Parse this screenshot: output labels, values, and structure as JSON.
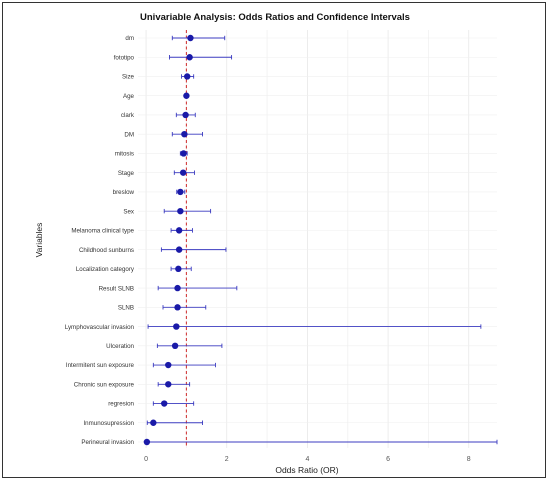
{
  "chart_data": {
    "type": "forest",
    "title": "Univariable Analysis: Odds Ratios and Confidence Intervals",
    "xlabel": "Odds Ratio (OR)",
    "ylabel": "Variables",
    "xlim": [
      -0.2,
      8.7
    ],
    "xticks": [
      0,
      2,
      4,
      6,
      8
    ],
    "reference_line": 1,
    "colors": {
      "point": "#1a1aa8",
      "ci": "#3b3bc0",
      "reference": "#d23c3c",
      "grid": "#e8e8e8"
    },
    "grid": true,
    "rows": [
      {
        "label": "dm",
        "or": 1.1,
        "lo": 0.65,
        "hi": 1.95
      },
      {
        "label": "fototipo",
        "or": 1.08,
        "lo": 0.58,
        "hi": 2.12
      },
      {
        "label": "Size",
        "or": 1.02,
        "lo": 0.88,
        "hi": 1.18
      },
      {
        "label": "Age",
        "or": 1.0,
        "lo": 0.97,
        "hi": 1.03
      },
      {
        "label": "clark",
        "or": 0.98,
        "lo": 0.75,
        "hi": 1.22
      },
      {
        "label": "DM",
        "or": 0.95,
        "lo": 0.65,
        "hi": 1.4
      },
      {
        "label": "mitosis",
        "or": 0.93,
        "lo": 0.85,
        "hi": 1.02
      },
      {
        "label": "Stage",
        "or": 0.92,
        "lo": 0.7,
        "hi": 1.2
      },
      {
        "label": "breslow",
        "or": 0.85,
        "lo": 0.76,
        "hi": 0.96
      },
      {
        "label": "Sex",
        "or": 0.85,
        "lo": 0.45,
        "hi": 1.6
      },
      {
        "label": "Melanoma clinical type",
        "or": 0.82,
        "lo": 0.62,
        "hi": 1.15
      },
      {
        "label": "Childhood sunburns",
        "or": 0.82,
        "lo": 0.38,
        "hi": 1.98
      },
      {
        "label": "Localization category",
        "or": 0.8,
        "lo": 0.62,
        "hi": 1.12
      },
      {
        "label": "Result SLNB",
        "or": 0.78,
        "lo": 0.3,
        "hi": 2.25
      },
      {
        "label": "SLNB",
        "or": 0.78,
        "lo": 0.42,
        "hi": 1.48
      },
      {
        "label": "Lymphovascular invasion",
        "or": 0.75,
        "lo": 0.05,
        "hi": 8.3
      },
      {
        "label": "Ulceration",
        "or": 0.72,
        "lo": 0.28,
        "hi": 1.88
      },
      {
        "label": "Intermitent sun exposure",
        "or": 0.55,
        "lo": 0.18,
        "hi": 1.72
      },
      {
        "label": "Chronic sun exposure",
        "or": 0.55,
        "lo": 0.3,
        "hi": 1.08
      },
      {
        "label": "regresion",
        "or": 0.45,
        "lo": 0.18,
        "hi": 1.18
      },
      {
        "label": "Inmunosupression",
        "or": 0.18,
        "lo": 0.03,
        "hi": 1.4
      },
      {
        "label": "Perineural invasion",
        "or": 0.02,
        "lo": 0.0,
        "hi": 8.7
      }
    ]
  }
}
